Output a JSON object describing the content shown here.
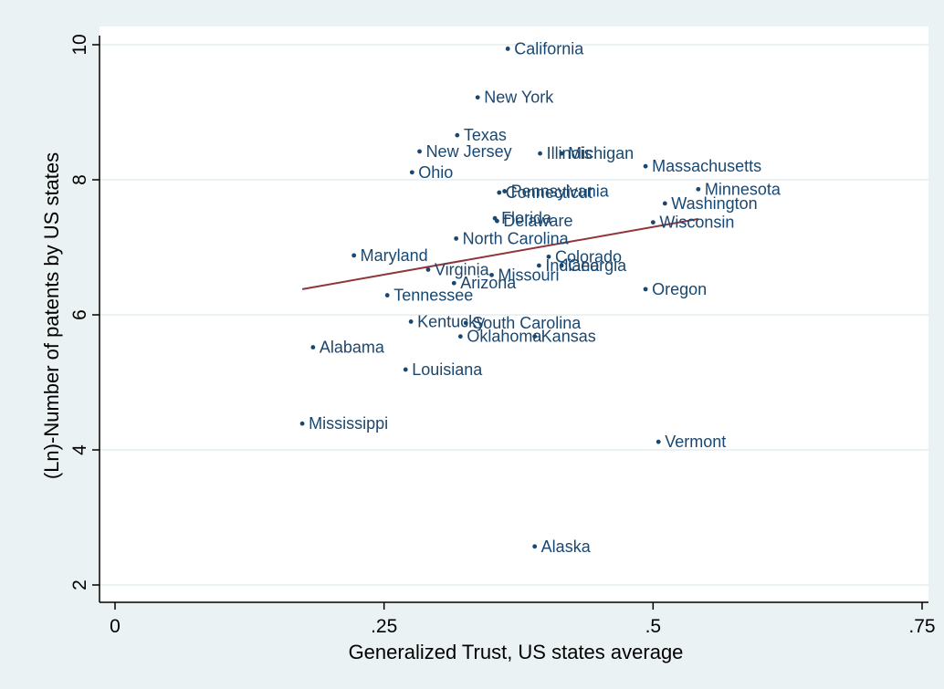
{
  "chart_data": {
    "type": "scatter",
    "title": "",
    "xlabel": "Generalized Trust, US states average",
    "ylabel": "(Ln)-Number of patents by US states",
    "xlim": [
      0,
      0.76
    ],
    "ylim": [
      1.9,
      10.3
    ],
    "x_ticks": [
      {
        "value": 0,
        "label": "0"
      },
      {
        "value": 0.25,
        "label": ".25"
      },
      {
        "value": 0.5,
        "label": ".5"
      },
      {
        "value": 0.75,
        "label": ".75"
      }
    ],
    "y_ticks": [
      {
        "value": 2,
        "label": "2"
      },
      {
        "value": 4,
        "label": "4"
      },
      {
        "value": 6,
        "label": "6"
      },
      {
        "value": 8,
        "label": "8"
      },
      {
        "value": 10,
        "label": "10"
      }
    ],
    "grid": "horizontal",
    "colors": {
      "background": "#eaf2f3",
      "plot_background": "#ffffff",
      "gridline": "#eaf2f3",
      "marker": "#1a476f",
      "label": "#1a476f",
      "fit_line": "#90353b"
    },
    "points": [
      {
        "label": "California",
        "x": 0.365,
        "y": 9.94
      },
      {
        "label": "New York",
        "x": 0.337,
        "y": 9.22
      },
      {
        "label": "Texas",
        "x": 0.318,
        "y": 8.66
      },
      {
        "label": "New Jersey",
        "x": 0.283,
        "y": 8.42
      },
      {
        "label": "Illinois",
        "x": 0.395,
        "y": 8.39
      },
      {
        "label": "Michigan",
        "x": 0.415,
        "y": 8.39
      },
      {
        "label": "Massachusetts",
        "x": 0.493,
        "y": 8.2
      },
      {
        "label": "Ohio",
        "x": 0.276,
        "y": 8.11
      },
      {
        "label": "Pennsylvania",
        "x": 0.362,
        "y": 7.83
      },
      {
        "label": "Connecticut",
        "x": 0.357,
        "y": 7.81
      },
      {
        "label": "Minnesota",
        "x": 0.542,
        "y": 7.86
      },
      {
        "label": "Washington",
        "x": 0.511,
        "y": 7.65
      },
      {
        "label": "Florida",
        "x": 0.353,
        "y": 7.43
      },
      {
        "label": "Delaware",
        "x": 0.355,
        "y": 7.39
      },
      {
        "label": "Wisconsin",
        "x": 0.5,
        "y": 7.37
      },
      {
        "label": "North Carolina",
        "x": 0.317,
        "y": 7.13
      },
      {
        "label": "Maryland",
        "x": 0.222,
        "y": 6.88
      },
      {
        "label": "Colorado",
        "x": 0.403,
        "y": 6.86
      },
      {
        "label": "Indiana",
        "x": 0.394,
        "y": 6.73
      },
      {
        "label": "Georgia",
        "x": 0.415,
        "y": 6.73
      },
      {
        "label": "Virginia",
        "x": 0.291,
        "y": 6.67
      },
      {
        "label": "Missouri",
        "x": 0.35,
        "y": 6.59
      },
      {
        "label": "Arizona",
        "x": 0.315,
        "y": 6.47
      },
      {
        "label": "Tennessee",
        "x": 0.253,
        "y": 6.29
      },
      {
        "label": "Oregon",
        "x": 0.493,
        "y": 6.38
      },
      {
        "label": "Kentucky",
        "x": 0.275,
        "y": 5.9
      },
      {
        "label": "South Carolina",
        "x": 0.326,
        "y": 5.88
      },
      {
        "label": "Oklahoma",
        "x": 0.321,
        "y": 5.68
      },
      {
        "label": "Kansas",
        "x": 0.39,
        "y": 5.68
      },
      {
        "label": "Alabama",
        "x": 0.184,
        "y": 5.52
      },
      {
        "label": "Louisiana",
        "x": 0.27,
        "y": 5.19
      },
      {
        "label": "Mississippi",
        "x": 0.174,
        "y": 4.39
      },
      {
        "label": "Vermont",
        "x": 0.505,
        "y": 4.12
      },
      {
        "label": "Alaska",
        "x": 0.39,
        "y": 2.57
      }
    ],
    "fit_line": {
      "x": [
        0.174,
        0.542
      ],
      "y": [
        6.38,
        7.42
      ]
    }
  }
}
